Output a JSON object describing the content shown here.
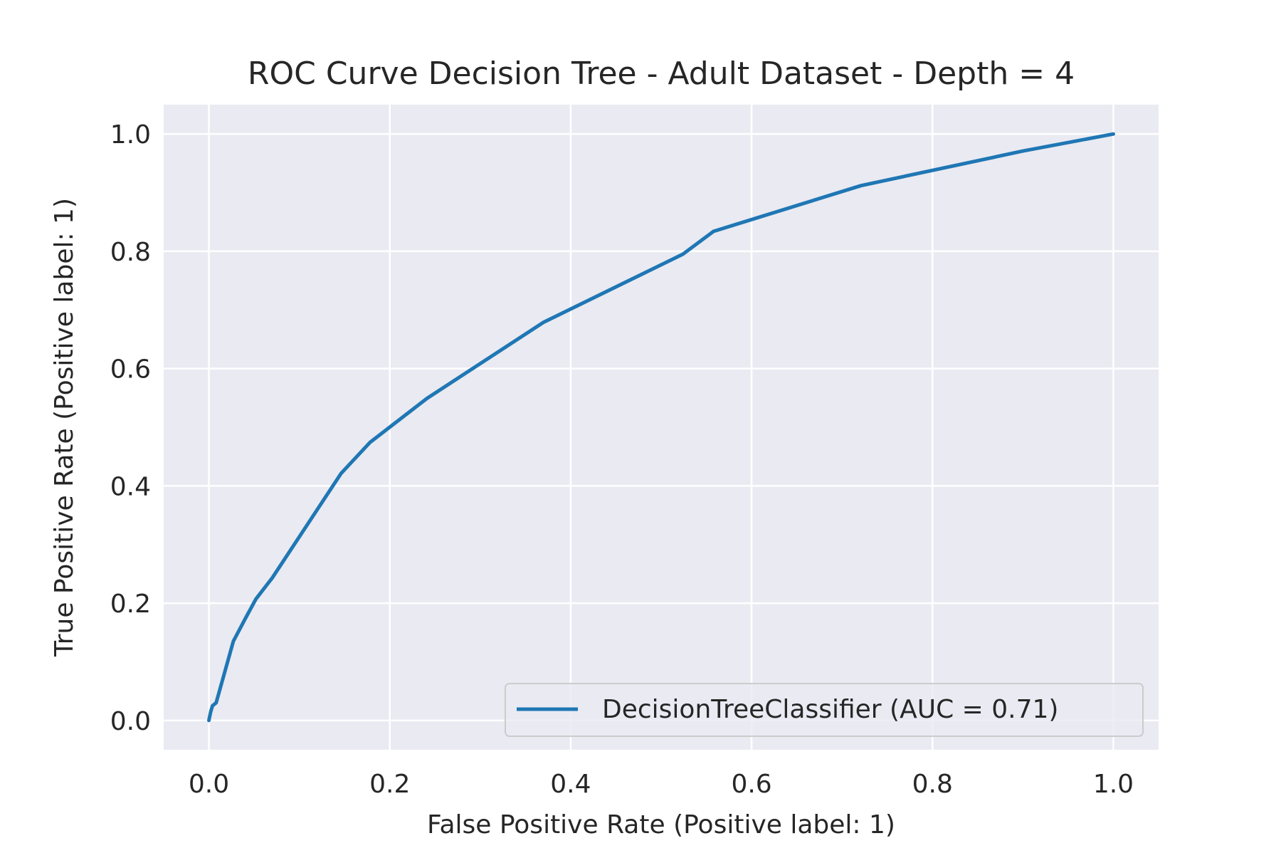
{
  "chart_data": {
    "type": "line",
    "title": "ROC Curve Decision Tree - Adult Dataset - Depth = 4",
    "xlabel": "False Positive Rate (Positive label: 1)",
    "ylabel": "True Positive Rate (Positive label: 1)",
    "xlim": [
      -0.05,
      1.05
    ],
    "ylim": [
      -0.05,
      1.05
    ],
    "xticks": [
      "0.0",
      "0.2",
      "0.4",
      "0.6",
      "0.8",
      "1.0"
    ],
    "yticks": [
      "0.0",
      "0.2",
      "0.4",
      "0.6",
      "0.8",
      "1.0"
    ],
    "grid": true,
    "legend_position": "lower-right",
    "series": [
      {
        "name": "DecisionTreeClassifier (AUC = 0.71)",
        "color": "#1f77b4",
        "x": [
          0.0,
          0.002,
          0.004,
          0.008,
          0.027,
          0.04,
          0.052,
          0.07,
          0.146,
          0.178,
          0.241,
          0.37,
          0.524,
          0.558,
          0.721,
          0.9,
          1.0
        ],
        "y": [
          0.0,
          0.015,
          0.025,
          0.03,
          0.135,
          0.173,
          0.207,
          0.243,
          0.421,
          0.474,
          0.549,
          0.679,
          0.795,
          0.834,
          0.912,
          0.971,
          1.0
        ]
      }
    ]
  }
}
